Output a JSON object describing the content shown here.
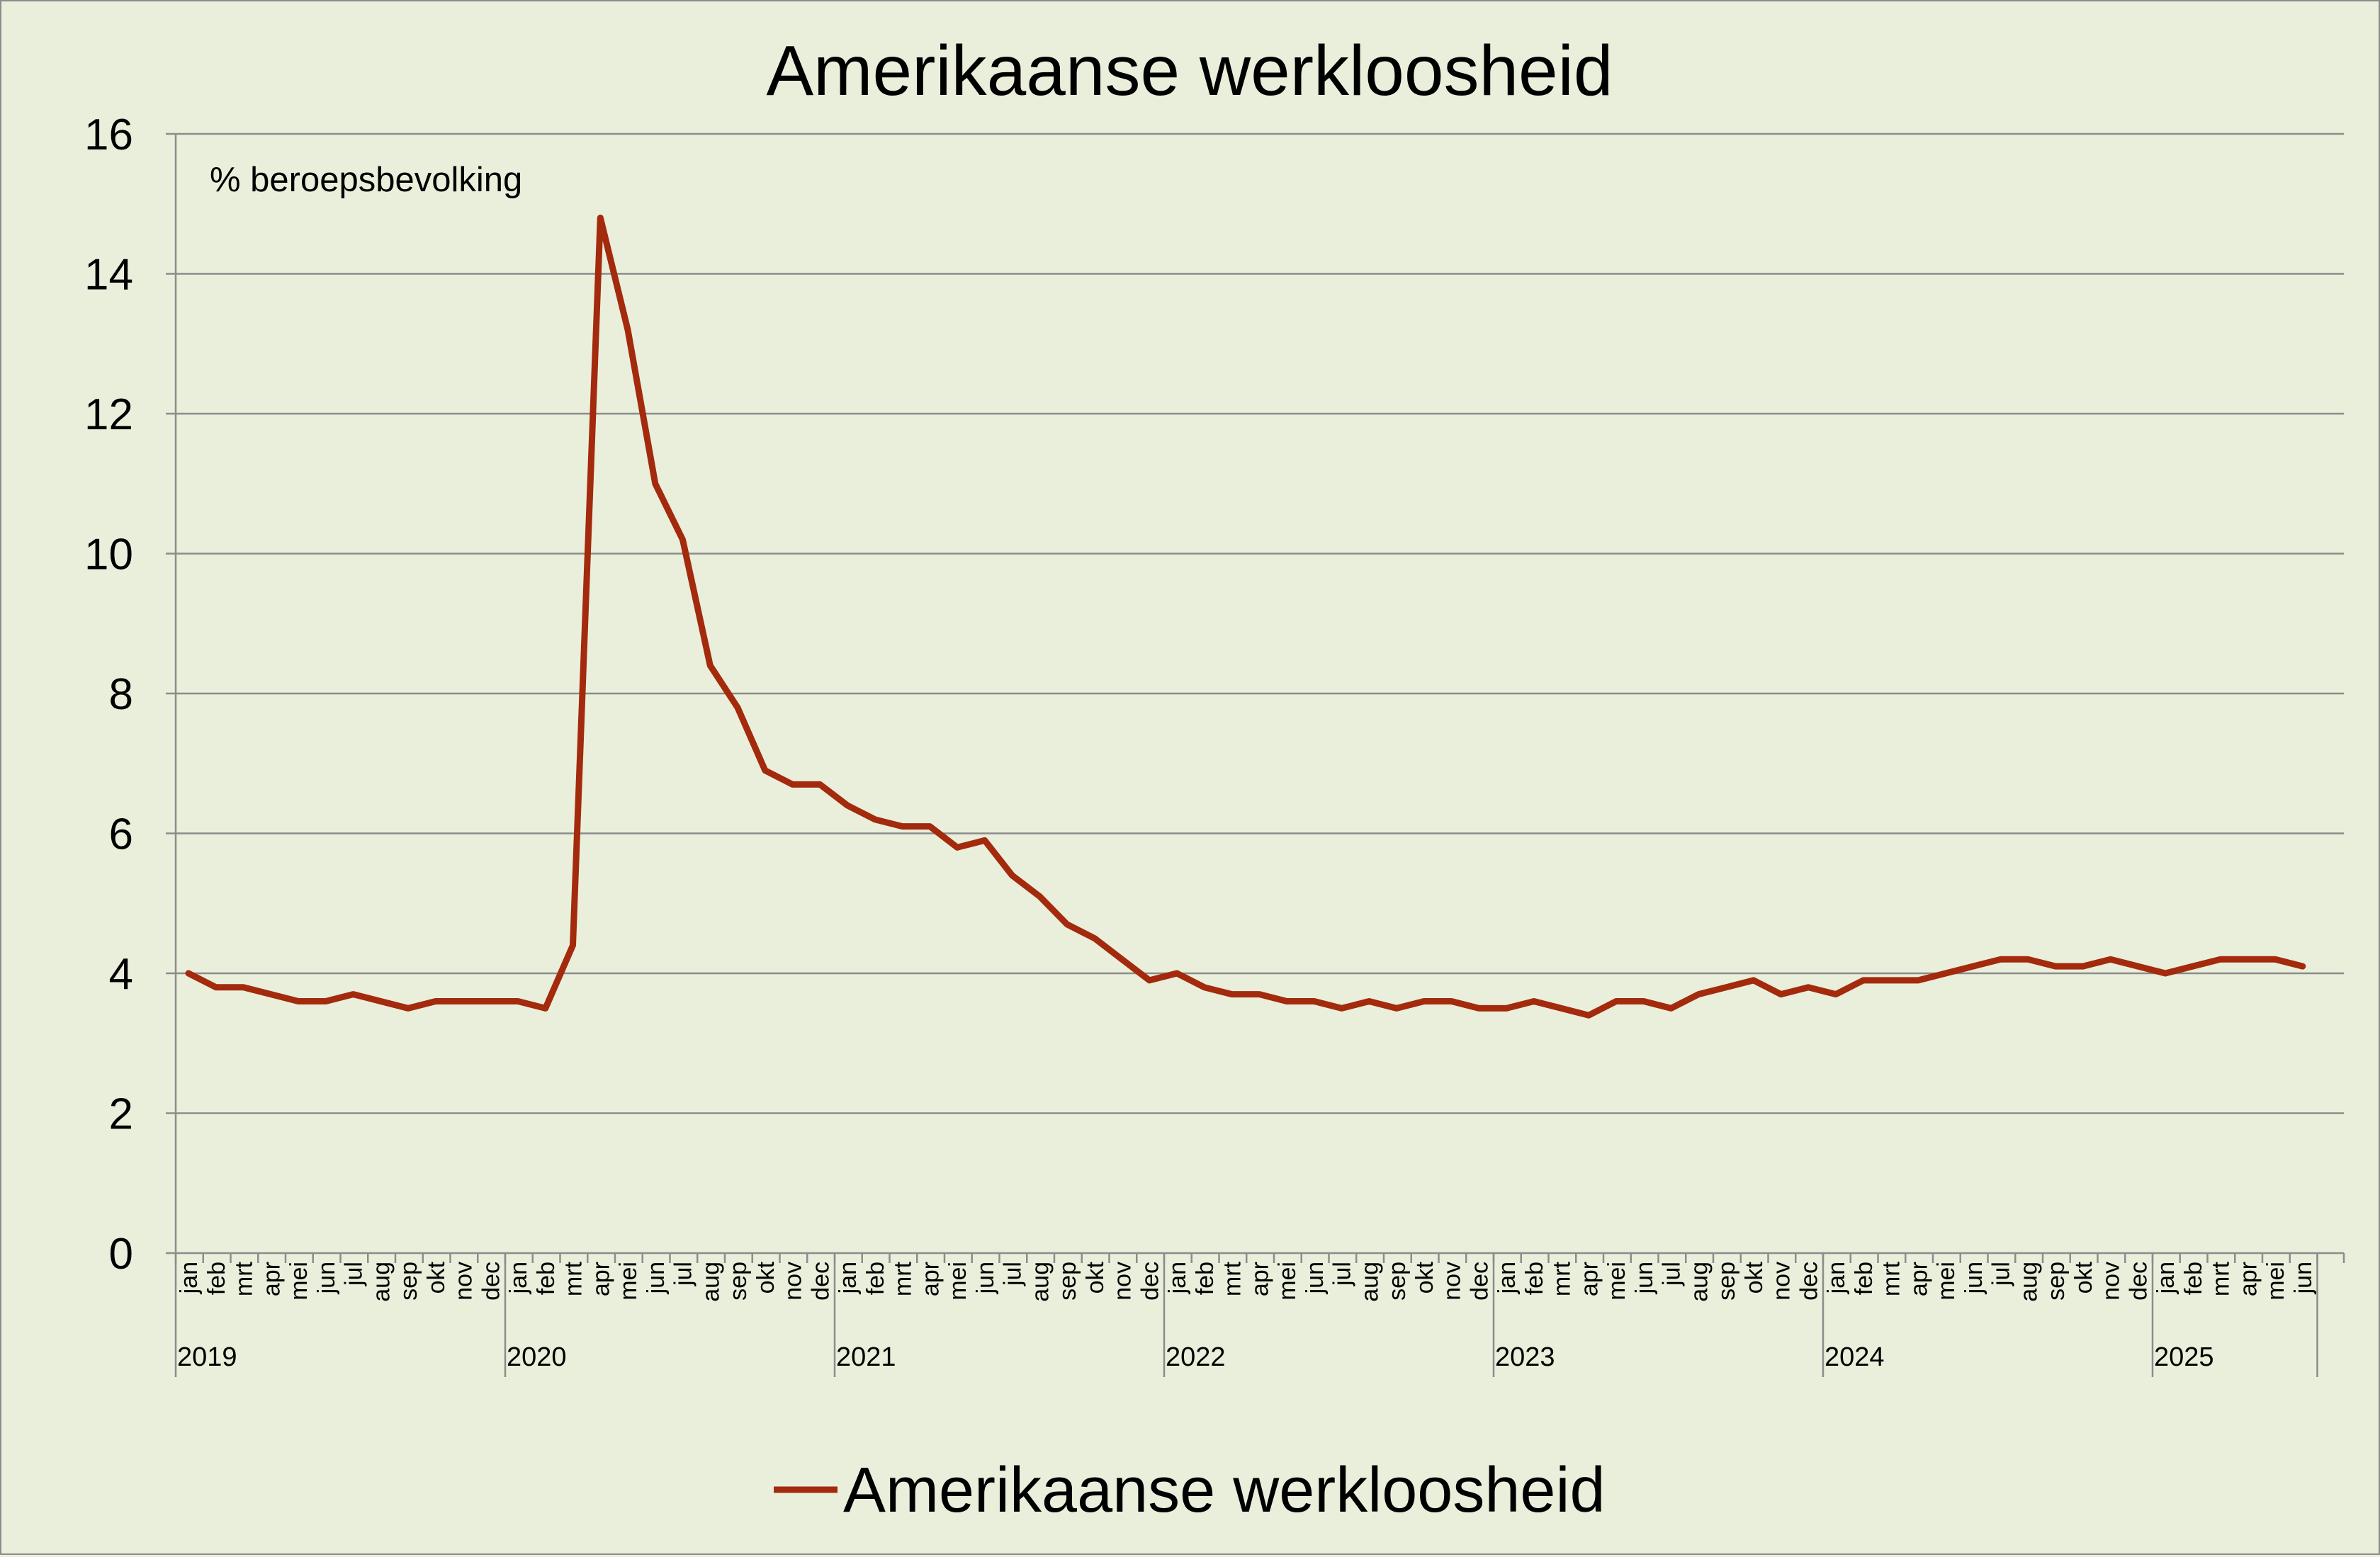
{
  "chart_data": {
    "type": "line",
    "title": "Amerikaanse werkloosheid",
    "unit_label": "% beroepsbevolking",
    "ylim": [
      0,
      16
    ],
    "yticks": [
      0,
      2,
      4,
      6,
      8,
      10,
      12,
      14,
      16
    ],
    "grid": true,
    "legend_position": "bottom",
    "month_labels": [
      "jan",
      "feb",
      "mrt",
      "apr",
      "mei",
      "jun",
      "jul",
      "aug",
      "sep",
      "okt",
      "nov",
      "dec"
    ],
    "years": [
      "2019",
      "2020",
      "2021",
      "2022",
      "2023",
      "2024",
      "2025"
    ],
    "last_month_label": "jun",
    "series": [
      {
        "name": "Amerikaanse werkloosheid",
        "color": "#a32a0c",
        "values": [
          4.0,
          3.8,
          3.8,
          3.7,
          3.6,
          3.6,
          3.7,
          3.6,
          3.5,
          3.6,
          3.6,
          3.6,
          3.6,
          3.5,
          4.4,
          14.8,
          13.2,
          11.0,
          10.2,
          8.4,
          7.8,
          6.9,
          6.7,
          6.7,
          6.4,
          6.2,
          6.1,
          6.1,
          5.8,
          5.9,
          5.4,
          5.1,
          4.7,
          4.5,
          4.2,
          3.9,
          4.0,
          3.8,
          3.7,
          3.7,
          3.6,
          3.6,
          3.5,
          3.6,
          3.5,
          3.6,
          3.6,
          3.5,
          3.5,
          3.6,
          3.5,
          3.4,
          3.6,
          3.6,
          3.5,
          3.7,
          3.8,
          3.9,
          3.7,
          3.8,
          3.7,
          3.9,
          3.9,
          3.9,
          4.0,
          4.1,
          4.2,
          4.2,
          4.1,
          4.1,
          4.2,
          4.1,
          4.0,
          4.1,
          4.2,
          4.2,
          4.2,
          4.1
        ]
      }
    ]
  }
}
